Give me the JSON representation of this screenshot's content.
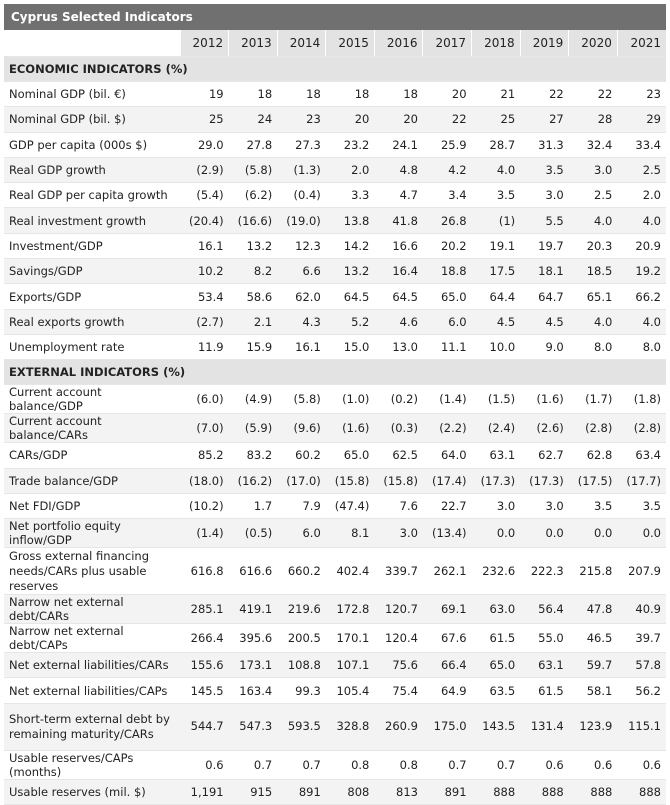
{
  "title": "Cyprus Selected Indicators",
  "years": [
    "2012",
    "2013",
    "2014",
    "2015",
    "2016",
    "2017",
    "2018",
    "2019",
    "2020",
    "2021"
  ],
  "sections": [
    {
      "name": "ECONOMIC INDICATORS (%)",
      "rows": [
        {
          "label": "Nominal GDP (bil. €)",
          "values": [
            "19",
            "18",
            "18",
            "18",
            "18",
            "20",
            "21",
            "22",
            "22",
            "23"
          ]
        },
        {
          "label": "Nominal GDP (bil. $)",
          "values": [
            "25",
            "24",
            "23",
            "20",
            "20",
            "22",
            "25",
            "27",
            "28",
            "29"
          ]
        },
        {
          "label": "GDP per capita (000s $)",
          "values": [
            "29.0",
            "27.8",
            "27.3",
            "23.2",
            "24.1",
            "25.9",
            "28.7",
            "31.3",
            "32.4",
            "33.4"
          ]
        },
        {
          "label": "Real GDP growth",
          "values": [
            "(2.9)",
            "(5.8)",
            "(1.3)",
            "2.0",
            "4.8",
            "4.2",
            "4.0",
            "3.5",
            "3.0",
            "2.5"
          ]
        },
        {
          "label": "Real GDP per capita growth",
          "values": [
            "(5.4)",
            "(6.2)",
            "(0.4)",
            "3.3",
            "4.7",
            "3.4",
            "3.5",
            "3.0",
            "2.5",
            "2.0"
          ]
        },
        {
          "label": "Real investment growth",
          "values": [
            "(20.4)",
            "(16.6)",
            "(19.0)",
            "13.8",
            "41.8",
            "26.8",
            "(1)",
            "5.5",
            "4.0",
            "4.0"
          ]
        },
        {
          "label": "Investment/GDP",
          "values": [
            "16.1",
            "13.2",
            "12.3",
            "14.2",
            "16.6",
            "20.2",
            "19.1",
            "19.7",
            "20.3",
            "20.9"
          ]
        },
        {
          "label": "Savings/GDP",
          "values": [
            "10.2",
            "8.2",
            "6.6",
            "13.2",
            "16.4",
            "18.8",
            "17.5",
            "18.1",
            "18.5",
            "19.2"
          ]
        },
        {
          "label": "Exports/GDP",
          "values": [
            "53.4",
            "58.6",
            "62.0",
            "64.5",
            "64.5",
            "65.0",
            "64.4",
            "64.7",
            "65.1",
            "66.2"
          ]
        },
        {
          "label": "Real exports growth",
          "values": [
            "(2.7)",
            "2.1",
            "4.3",
            "5.2",
            "4.6",
            "6.0",
            "4.5",
            "4.5",
            "4.0",
            "4.0"
          ]
        },
        {
          "label": "Unemployment rate",
          "values": [
            "11.9",
            "15.9",
            "16.1",
            "15.0",
            "13.0",
            "11.1",
            "10.0",
            "9.0",
            "8.0",
            "8.0"
          ]
        }
      ]
    },
    {
      "name": "EXTERNAL INDICATORS (%)",
      "rows": [
        {
          "label": "Current account balance/GDP",
          "values": [
            "(6.0)",
            "(4.9)",
            "(5.8)",
            "(1.0)",
            "(0.2)",
            "(1.4)",
            "(1.5)",
            "(1.6)",
            "(1.7)",
            "(1.8)"
          ]
        },
        {
          "label": "Current account balance/CARs",
          "values": [
            "(7.0)",
            "(5.9)",
            "(9.6)",
            "(1.6)",
            "(0.3)",
            "(2.2)",
            "(2.4)",
            "(2.6)",
            "(2.8)",
            "(2.8)"
          ]
        },
        {
          "label": "CARs/GDP",
          "values": [
            "85.2",
            "83.2",
            "60.2",
            "65.0",
            "62.5",
            "64.0",
            "63.1",
            "62.7",
            "62.8",
            "63.4"
          ]
        },
        {
          "label": "Trade balance/GDP",
          "values": [
            "(18.0)",
            "(16.2)",
            "(17.0)",
            "(15.8)",
            "(15.8)",
            "(17.4)",
            "(17.3)",
            "(17.3)",
            "(17.5)",
            "(17.7)"
          ]
        },
        {
          "label": "Net FDI/GDP",
          "values": [
            "(10.2)",
            "1.7",
            "7.9",
            "(47.4)",
            "7.6",
            "22.7",
            "3.0",
            "3.0",
            "3.5",
            "3.5"
          ]
        },
        {
          "label": "Net portfolio equity inflow/GDP",
          "values": [
            "(1.4)",
            "(0.5)",
            "6.0",
            "8.1",
            "3.0",
            "(13.4)",
            "0.0",
            "0.0",
            "0.0",
            "0.0"
          ]
        },
        {
          "label": "Gross external financing needs/CARs plus usable reserves",
          "values": [
            "616.8",
            "616.6",
            "660.2",
            "402.4",
            "339.7",
            "262.1",
            "232.6",
            "222.3",
            "215.8",
            "207.9"
          ],
          "tall": true
        },
        {
          "label": "Narrow net external debt/CARs",
          "values": [
            "285.1",
            "419.1",
            "219.6",
            "172.8",
            "120.7",
            "69.1",
            "63.0",
            "56.4",
            "47.8",
            "40.9"
          ]
        },
        {
          "label": "Narrow net external debt/CAPs",
          "values": [
            "266.4",
            "395.6",
            "200.5",
            "170.1",
            "120.4",
            "67.6",
            "61.5",
            "55.0",
            "46.5",
            "39.7"
          ]
        },
        {
          "label": "Net external liabilities/CARs",
          "values": [
            "155.6",
            "173.1",
            "108.8",
            "107.1",
            "75.6",
            "66.4",
            "65.0",
            "63.1",
            "59.7",
            "57.8"
          ]
        },
        {
          "label": "Net external liabilities/CAPs",
          "values": [
            "145.5",
            "163.4",
            "99.3",
            "105.4",
            "75.4",
            "64.9",
            "63.5",
            "61.5",
            "58.1",
            "56.2"
          ]
        },
        {
          "label": "Short-term external debt by remaining maturity/CARs",
          "values": [
            "544.7",
            "547.3",
            "593.5",
            "328.8",
            "260.9",
            "175.0",
            "143.5",
            "131.4",
            "123.9",
            "115.1"
          ],
          "tall": true
        },
        {
          "label": "Usable reserves/CAPs (months)",
          "values": [
            "0.6",
            "0.7",
            "0.7",
            "0.8",
            "0.8",
            "0.7",
            "0.7",
            "0.6",
            "0.6",
            "0.6"
          ]
        },
        {
          "label": "Usable reserves (mil. $)",
          "values": [
            "1,191",
            "915",
            "891",
            "808",
            "813",
            "891",
            "888",
            "888",
            "888",
            "888"
          ]
        }
      ]
    }
  ]
}
